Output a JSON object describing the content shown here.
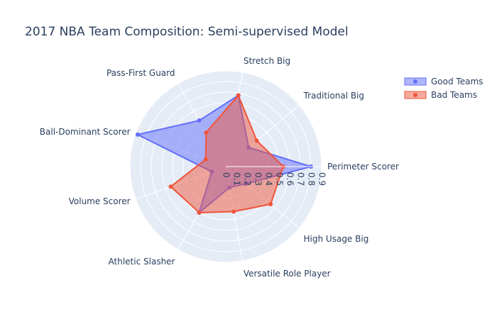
{
  "chart_data": {
    "type": "radar",
    "title": "2017 NBA Team Composition: Semi-supervised Model",
    "categories": [
      "Perimeter Scorer",
      "Traditional Big",
      "Stretch Big",
      "Pass-First Guard",
      "Ball-Dominant Scorer",
      "Volume Scorer",
      "Athletic Slasher",
      "Versatile Role Player",
      "High Usage Big"
    ],
    "radial_range": [
      0,
      0.9
    ],
    "radial_ticks": [
      "0",
      "0.1",
      "0.2",
      "0.3",
      "0.4",
      "0.5",
      "0.6",
      "0.7",
      "0.8",
      "0.9"
    ],
    "legend_position": "top-right",
    "series": [
      {
        "name": "Good Teams",
        "color": "#636efa",
        "values": [
          0.8,
          0.28,
          0.68,
          0.5,
          0.88,
          0.14,
          0.5,
          0.2,
          0.25
        ]
      },
      {
        "name": "Bad Teams",
        "color": "#ef553b",
        "values": [
          0.54,
          0.38,
          0.68,
          0.37,
          0.2,
          0.55,
          0.5,
          0.43,
          0.55
        ]
      }
    ]
  }
}
